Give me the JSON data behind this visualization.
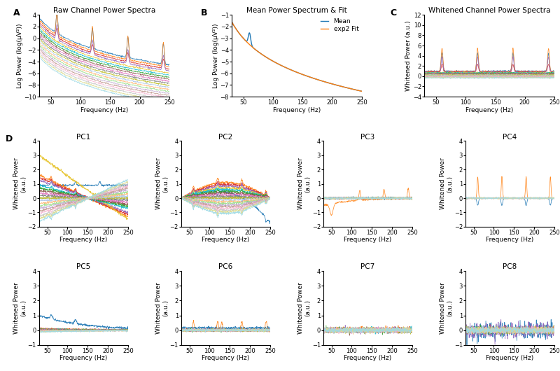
{
  "fig_width": 8.0,
  "fig_height": 5.3,
  "dpi": 100,
  "freq_min": 30,
  "freq_max": 250,
  "n_channels": 20,
  "panel_A": {
    "title": "Raw Channel Power Spectra",
    "xlabel": "Frequency (Hz)",
    "ylabel": "Log Power (log(μV²))",
    "ylim": [
      -10,
      4
    ],
    "yticks": [
      -10,
      -8,
      -6,
      -4,
      -2,
      0,
      2,
      4
    ]
  },
  "panel_B": {
    "title": "Mean Power Spectrum & Fit",
    "xlabel": "Frequency (Hz)",
    "ylabel": "Log Power (log(μV²))",
    "ylim": [
      -8,
      -1
    ],
    "yticks": [
      -8,
      -7,
      -6,
      -5,
      -4,
      -3,
      -2,
      -1
    ],
    "legend_mean": "Mean",
    "legend_fit": "exp2 Fit"
  },
  "panel_C": {
    "title": "Whitened Channel Power Spectra",
    "xlabel": "Frequency (Hz)",
    "ylabel": "Whitened Power (a.u.)",
    "ylim": [
      -4,
      12
    ],
    "yticks": [
      -4,
      -2,
      0,
      2,
      4,
      6,
      8,
      10,
      12
    ]
  },
  "panel_D": {
    "xlabel": "Frequency (Hz)",
    "ylabel": "Whitened Power\n(a.u.)",
    "ylim": [
      -2,
      4
    ],
    "yticks": [
      -2,
      -1,
      0,
      1,
      2,
      3,
      4
    ]
  },
  "panel_E": {
    "xlabel": "Frequency (Hz)",
    "ylabel": "Whitened Power\n(a.u.)",
    "ylim": [
      -1,
      4
    ],
    "yticks": [
      -1,
      0,
      1,
      2,
      3,
      4
    ]
  },
  "ch_colors": [
    "#1f77b4",
    "#ff7f0e",
    "#d62728",
    "#9467bd",
    "#e6c229",
    "#17becf",
    "#2ca02c",
    "#8c564b",
    "#e377c2",
    "#7f7f7f",
    "#bcbd22",
    "#aec7e8",
    "#ffbb78",
    "#98df8a",
    "#c5b0d5",
    "#c49c94",
    "#f7b6d2",
    "#c7c7c7",
    "#dbdb8d",
    "#9edae5"
  ],
  "label_fontsize": 6.5,
  "title_fontsize": 7.5,
  "tick_fontsize": 6,
  "line_width": 0.55
}
